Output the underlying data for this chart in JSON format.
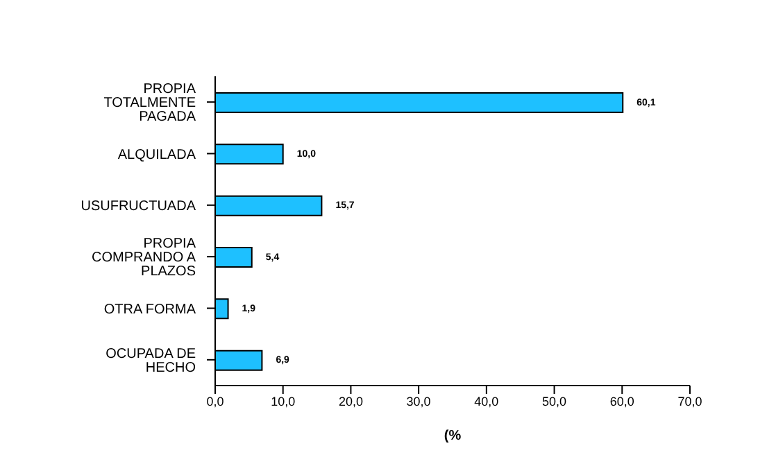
{
  "chart_data": {
    "type": "bar",
    "orientation": "horizontal",
    "xlabel": "(%",
    "categories": [
      "PROPIA TOTALMENTE PAGADA",
      "ALQUILADA",
      "USUFRUCTUADA",
      "PROPIA COMPRANDO A PLAZOS",
      "OTRA FORMA",
      "OCUPADA DE HECHO"
    ],
    "values": [
      60.1,
      10.0,
      15.7,
      5.4,
      1.9,
      6.9
    ],
    "value_labels": [
      "60,1",
      "10,0",
      "15,7",
      "5,4",
      "1,9",
      "6,9"
    ],
    "color": "#1ec0ff",
    "xlim": [
      0,
      70
    ],
    "xticks": [
      {
        "value": 0,
        "label": "0,0"
      },
      {
        "value": 10,
        "label": "10,0"
      },
      {
        "value": 20,
        "label": "20,0"
      },
      {
        "value": 30,
        "label": "30,0"
      },
      {
        "value": 40,
        "label": "40,0"
      },
      {
        "value": 50,
        "label": "50,0"
      },
      {
        "value": 60,
        "label": "60,0"
      },
      {
        "value": 70,
        "label": "70,0"
      }
    ],
    "grid": false,
    "legend": false
  }
}
